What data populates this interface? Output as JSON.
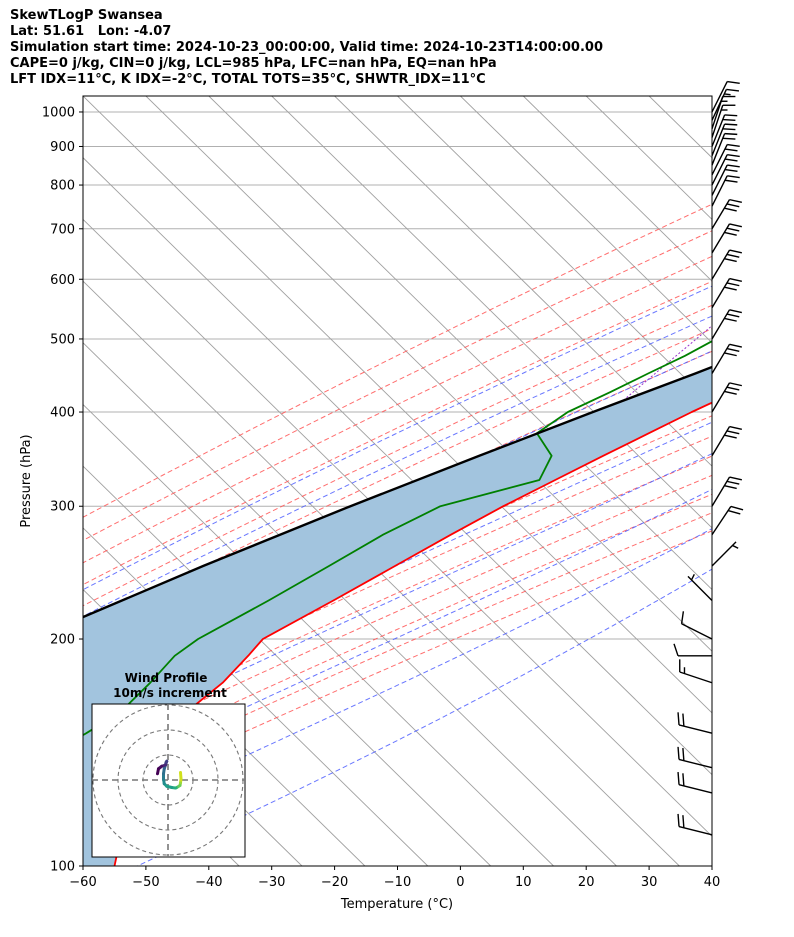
{
  "header": {
    "line1": "SkewTLogP Swansea",
    "line2": "Lat: 51.61   Lon: -4.07",
    "line3": "Simulation start time: 2024-10-23_00:00:00, Valid time: 2024-10-23T14:00:00.00",
    "line4": "CAPE=0 j/kg, CIN=0 j/kg, LCL=985 hPa, LFC=nan hPa, EQ=nan hPa",
    "line5": "LFT IDX=11°C, K IDX=-2°C, TOTAL TOTS=35°C, SHWTR_IDX=11°C"
  },
  "colors": {
    "temperature": "#ff0000",
    "dewpoint": "#008000",
    "parcel": "#000000",
    "cape_fill": "#a2c4de",
    "dry_adiabat": "#ff5555",
    "moist_adiabat": "#4455ff",
    "mixing_ratio": "#9933cc",
    "isotherm": "#a0a0a0",
    "grid": "#b0b0b0"
  },
  "chart_data": {
    "type": "line",
    "chart_kind": "skew-T log-P diagram",
    "xlabel": "Temperature (°C)",
    "ylabel": "Pressure (hPa)",
    "xlim": [
      -60,
      40
    ],
    "ylim": [
      1050,
      100
    ],
    "y_scale": "log",
    "x_ticks": [
      "−60",
      "−50",
      "−40",
      "−30",
      "−20",
      "−10",
      "0",
      "10",
      "20",
      "30",
      "40"
    ],
    "x_tick_values": [
      -60,
      -50,
      -40,
      -30,
      -20,
      -10,
      0,
      10,
      20,
      30,
      40
    ],
    "y_ticks": [
      "100",
      "200",
      "300",
      "400",
      "500",
      "600",
      "700",
      "800",
      "900",
      "1000"
    ],
    "y_tick_values": [
      100,
      200,
      300,
      400,
      500,
      600,
      700,
      800,
      900,
      1000
    ],
    "series": [
      {
        "key": "temperature",
        "pressure": [
          1000,
          975,
          950,
          925,
          900,
          875,
          850,
          825,
          800,
          775,
          750,
          725,
          700,
          675,
          650,
          625,
          600,
          575,
          550,
          525,
          500,
          475,
          450,
          425,
          400,
          375,
          350,
          325,
          300,
          275,
          250,
          225,
          200,
          190,
          175,
          160,
          150,
          140,
          130,
          120,
          110,
          100
        ],
        "values": [
          11.8,
          10.2,
          8.8,
          7.2,
          5.8,
          4.3,
          3.0,
          1.5,
          -0.4,
          -1.5,
          -2.3,
          -3.5,
          -5.3,
          -7.0,
          -9.0,
          -10.8,
          -13.0,
          -15.3,
          -18.2,
          -21.0,
          -23.5,
          -26.5,
          -29.8,
          -33.2,
          -36.8,
          -40.2,
          -43.8,
          -47.5,
          -51.5,
          -55.2,
          -59.0,
          -63.2,
          -68.2,
          -67.8,
          -67.5,
          -68.5,
          -67.5,
          -65.5,
          -64.5,
          -62.5,
          -59.0,
          -55.0
        ]
      },
      {
        "key": "dewpoint",
        "pressure": [
          1000,
          975,
          950,
          925,
          900,
          875,
          850,
          825,
          800,
          775,
          750,
          725,
          700,
          675,
          650,
          625,
          600,
          575,
          550,
          525,
          500,
          475,
          450,
          425,
          400,
          375,
          350,
          325,
          300,
          275,
          250,
          225,
          200,
          190,
          175,
          160,
          150,
          140,
          130,
          120,
          110,
          100
        ],
        "values": [
          10.8,
          10.0,
          8.4,
          5.8,
          3.0,
          -0.8,
          -5.5,
          -11.0,
          -18.0,
          -25.0,
          -30.5,
          -33.5,
          -34.5,
          -32.0,
          -31.5,
          -33.5,
          -36.0,
          -39.0,
          -41.0,
          -42.5,
          -44.8,
          -47.0,
          -50.0,
          -53.0,
          -56.5,
          -58.0,
          -52.0,
          -50.0,
          -61.5,
          -66.0,
          -69.5,
          -73.5,
          -78.5,
          -79.5,
          -79.0,
          -79.0,
          -81.0,
          -83.5,
          -82.0,
          -78.5,
          -74.5,
          -70.0
        ]
      },
      {
        "key": "parcel",
        "pressure": [
          1015,
          985,
          950,
          900,
          850,
          800,
          750,
          700,
          650,
          600,
          550,
          500,
          450,
          400,
          350,
          300,
          250,
          200,
          150,
          100
        ],
        "values": [
          12.5,
          10.2,
          7.9,
          5.0,
          2.0,
          -1.5,
          -5.3,
          -9.6,
          -14.4,
          -20.0,
          -26.5,
          -34.0,
          -42.5,
          -52.5,
          -63.5,
          -75.8,
          -89.5,
          -105.0,
          -123.5,
          -147.0
        ]
      }
    ],
    "wind_barbs": {
      "pressure": [
        1000,
        975,
        950,
        925,
        900,
        875,
        850,
        825,
        800,
        775,
        750,
        700,
        650,
        600,
        550,
        500,
        450,
        400,
        350,
        300,
        275,
        250,
        225,
        200,
        190,
        175,
        150,
        135,
        125,
        110
      ],
      "u_kt": [
        -5,
        -7,
        -5,
        -5,
        -8,
        -8,
        -8,
        -10,
        -10,
        -10,
        -10,
        -15,
        -15,
        -15,
        -15,
        -15,
        -15,
        -15,
        -15,
        -15,
        -10,
        -5,
        5,
        10,
        10,
        15,
        20,
        20,
        20,
        20
      ],
      "v_kt": [
        -10,
        -15,
        -15,
        -15,
        -20,
        -20,
        -20,
        -20,
        -20,
        -20,
        -20,
        -25,
        -25,
        -25,
        -25,
        -25,
        -25,
        -25,
        -25,
        -25,
        -15,
        -5,
        -5,
        -5,
        0,
        -5,
        -5,
        -5,
        -5,
        -5
      ]
    },
    "hodograph": {
      "title": "Wind Profile",
      "subtitle": "10m/s increment",
      "ring_spacing_ms": 10,
      "u_ms": [
        5.0,
        5.2,
        5.0,
        4.8,
        3.5,
        3.0,
        1.5,
        -0.5,
        -1.5,
        -1.8,
        -1.8,
        -1.5,
        -1.0,
        -0.8,
        -0.5,
        -1.0,
        -2.5,
        -3.8,
        -4.2
      ],
      "v_ms": [
        3.0,
        0.5,
        -1.2,
        -2.2,
        -3.0,
        -3.2,
        -3.0,
        -2.5,
        -1.5,
        0.5,
        2.5,
        4.5,
        6.0,
        7.0,
        7.5,
        6.0,
        5.5,
        4.5,
        2.5
      ]
    }
  }
}
